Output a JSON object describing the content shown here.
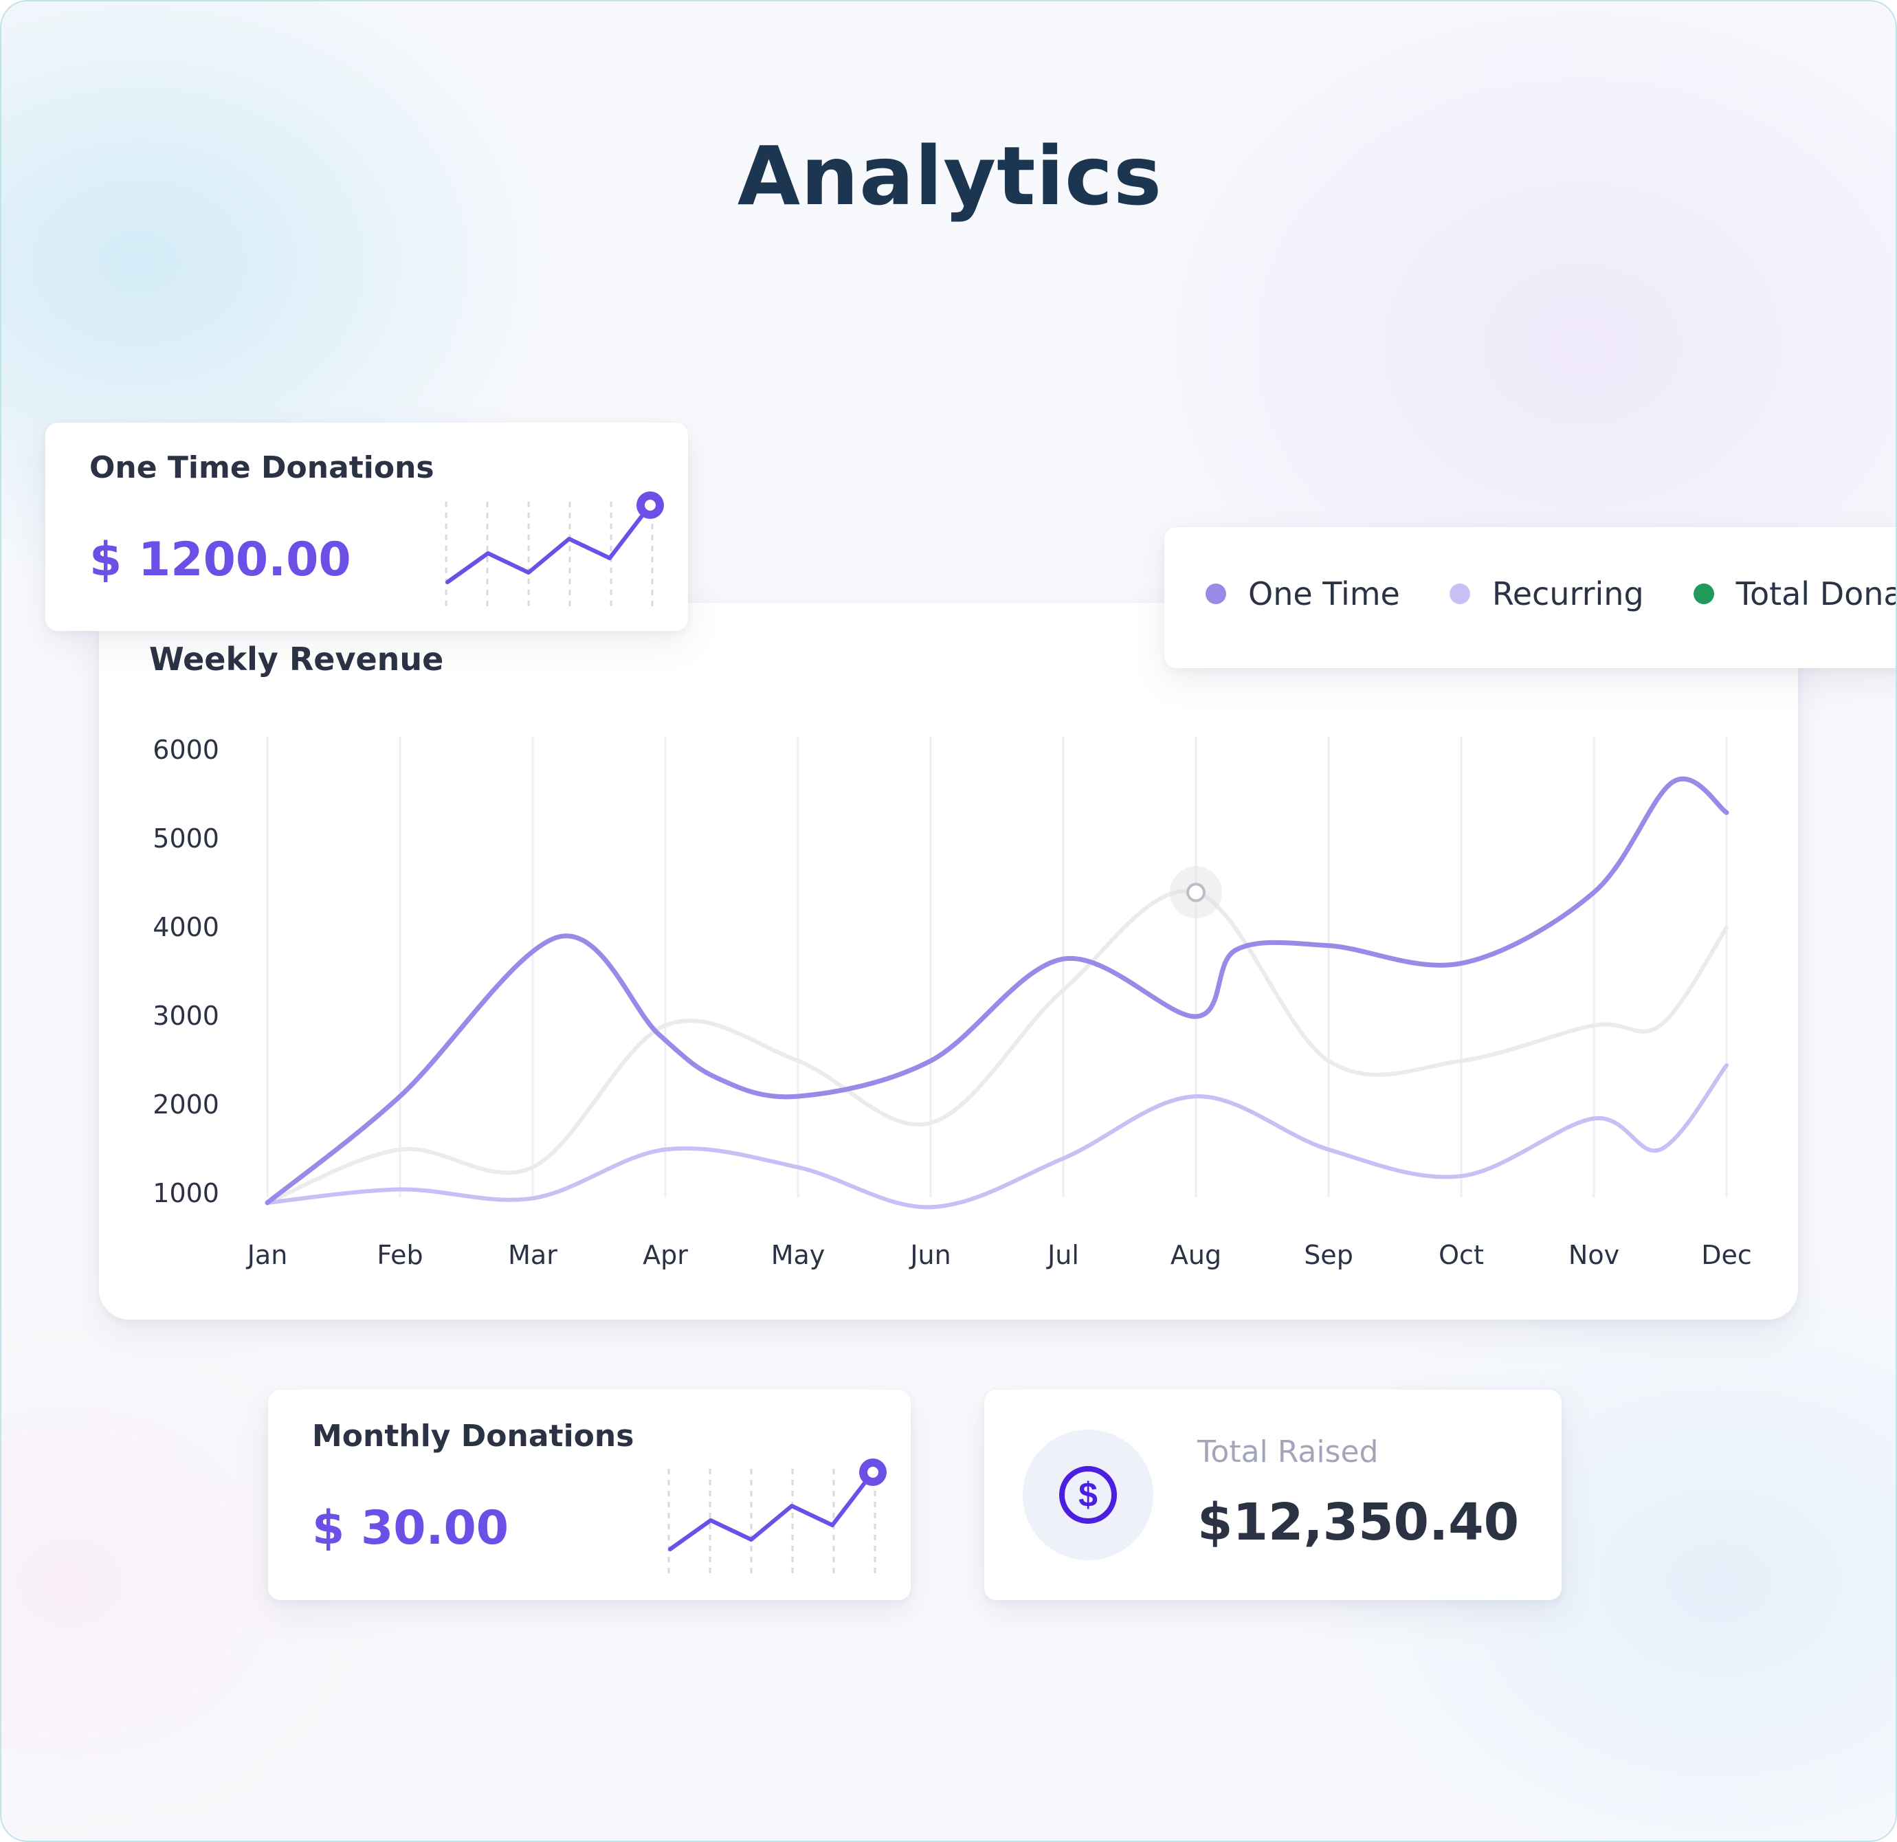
{
  "page": {
    "title": "Analytics"
  },
  "one_time_card": {
    "label": "One Time Donations",
    "value": "$ 1200.00",
    "spark": [
      2,
      5,
      3,
      6.5,
      4.5,
      10
    ]
  },
  "monthly_card": {
    "label": "Monthly Donations",
    "value": "$ 30.00",
    "spark": [
      2,
      5,
      3,
      6.5,
      4.5,
      10
    ]
  },
  "total_card": {
    "label": "Total Raised",
    "value": "$12,350.40",
    "icon": "dollar-circle-icon"
  },
  "legend": [
    {
      "label": "One Time",
      "color": "#9b89e8"
    },
    {
      "label": "Recurring",
      "color": "#c9bff4"
    },
    {
      "label": "Total Donati",
      "color": "#1f9a5b"
    }
  ],
  "chart_data": {
    "type": "line",
    "title": "Weekly Revenue",
    "categories": [
      "Jan",
      "Feb",
      "Mar",
      "Apr",
      "May",
      "Jun",
      "Jul",
      "Aug",
      "Sep",
      "Oct",
      "Nov",
      "Dec"
    ],
    "y_ticks": [
      6000,
      5000,
      4000,
      3000,
      2000,
      1000
    ],
    "ylim": [
      1000,
      6000
    ],
    "grid": "vertical",
    "legend_position": "top-right",
    "series": [
      {
        "name": "One Time",
        "color": "#9b89e8",
        "width": 7,
        "x": [
          0,
          1,
          2.2,
          2.95,
          3.4,
          4,
          5,
          6,
          7,
          7.3,
          8,
          9,
          10,
          10.6,
          11
        ],
        "values": [
          900,
          2100,
          3900,
          2800,
          2300,
          2100,
          2500,
          3650,
          3000,
          3750,
          3800,
          3600,
          4400,
          5650,
          5300
        ]
      },
      {
        "name": "Recurring",
        "color": "#c9bff4",
        "width": 6,
        "x": [
          0,
          1,
          2,
          3,
          4,
          5,
          6,
          7,
          8,
          9,
          10,
          10.5,
          11
        ],
        "values": [
          900,
          1050,
          950,
          1500,
          1300,
          850,
          1400,
          2100,
          1500,
          1200,
          1850,
          1500,
          2450
        ]
      },
      {
        "name": "Total Donations",
        "color": "#ebebeb",
        "width": 6,
        "x": [
          0,
          1,
          2,
          3,
          4,
          5,
          6,
          7,
          8,
          9,
          10,
          10.5,
          11
        ],
        "values": [
          900,
          1500,
          1300,
          2900,
          2500,
          1800,
          3300,
          4400,
          2500,
          2500,
          2900,
          2900,
          4000
        ]
      }
    ],
    "highlight": {
      "series": "Total Donations",
      "x": 7,
      "value": 4400
    }
  }
}
